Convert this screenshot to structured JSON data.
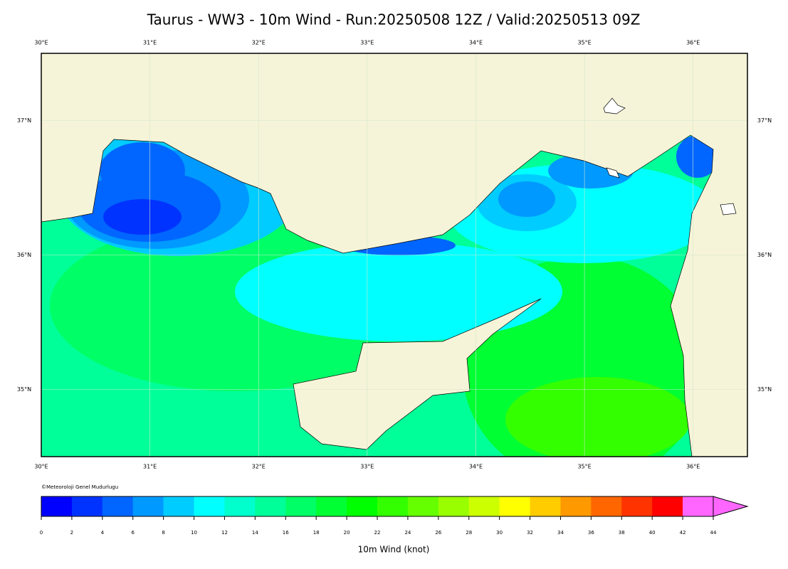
{
  "title": "Taurus - WW3 - 10m Wind - Run:20250508 12Z / Valid:20250513 09Z",
  "credit": "©Meteoroloji Genel Mudurlugu",
  "map": {
    "lonlim": [
      30,
      36.5
    ],
    "latlim": [
      34.5,
      37.5
    ],
    "lon_ticks": [
      {
        "value": 30,
        "label": "30°E"
      },
      {
        "value": 31,
        "label": "31°E"
      },
      {
        "value": 32,
        "label": "32°E"
      },
      {
        "value": 33,
        "label": "33°E"
      },
      {
        "value": 34,
        "label": "34°E"
      },
      {
        "value": 35,
        "label": "35°E"
      },
      {
        "value": 36,
        "label": "36°E"
      }
    ],
    "lat_ticks": [
      {
        "value": 35,
        "label": "35°N"
      },
      {
        "value": 36,
        "label": "36°N"
      },
      {
        "value": 37,
        "label": "37°N"
      }
    ]
  },
  "colorbar": {
    "label": "10m Wind (knot)",
    "ticks": [
      0,
      2,
      4,
      6,
      8,
      10,
      12,
      14,
      16,
      18,
      20,
      22,
      24,
      26,
      28,
      30,
      32,
      34,
      36,
      38,
      40,
      42,
      44
    ],
    "colors": [
      "#0000ff",
      "#0033ff",
      "#0066ff",
      "#0099ff",
      "#00ccff",
      "#00ffff",
      "#00ffcc",
      "#00ff99",
      "#00ff66",
      "#00ff33",
      "#00ff00",
      "#33ff00",
      "#66ff00",
      "#99ff00",
      "#ccff00",
      "#ffff00",
      "#ffcc00",
      "#ff9900",
      "#ff6600",
      "#ff3300",
      "#ff0000",
      "#ff66ff"
    ]
  }
}
